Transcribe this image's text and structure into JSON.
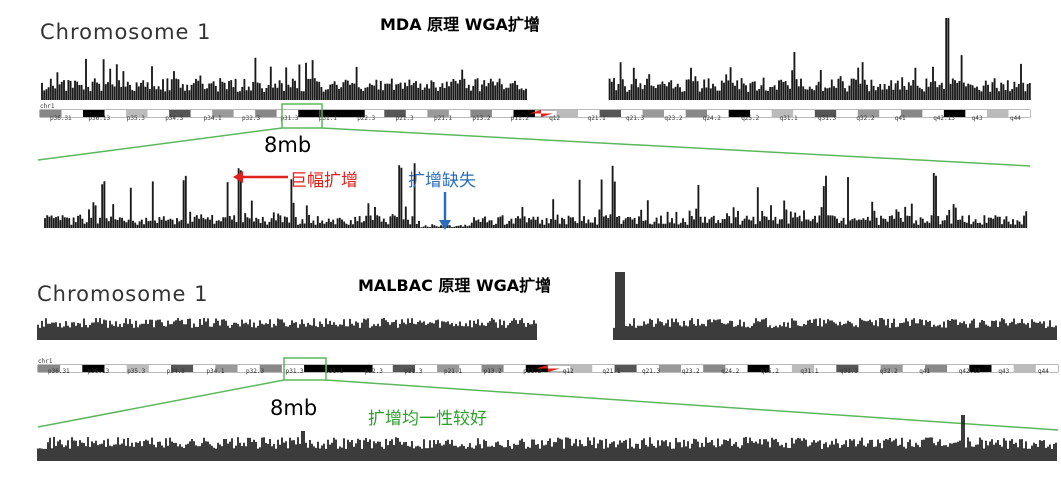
{
  "colors": {
    "track": "#1a1a1a",
    "zoom_box": "#5cb85c",
    "callout_red": "#e0201b",
    "callout_blue": "#2a6ebb",
    "callout_green": "#2ca02c",
    "centromere": "#e0201b"
  },
  "panels": [
    {
      "title": "MDA 原理 WGA扩增",
      "chrom_label": "Chromosome 1",
      "chr_name": "chr1",
      "zoom_label": "8mb",
      "annotations": [
        "巨幅扩增",
        "扩增缺失"
      ],
      "top_track_style": "spiky",
      "zoom_track_style": "spiky"
    },
    {
      "title": "MALBAC 原理 WGA扩增",
      "chrom_label": "Chromosome 1",
      "chr_name": "chr1",
      "zoom_label": "8mb",
      "annotations": [
        "扩增均一性较好"
      ],
      "top_track_style": "uniform",
      "zoom_track_style": "uniform"
    }
  ],
  "bands": [
    "p36.31",
    "p36.13",
    "p35.3",
    "p34.3",
    "p34.1",
    "p32.3",
    "p31.3",
    "p31.1",
    "p22.3",
    "p21.3",
    "p21.1",
    "p13.2",
    "p11.2",
    "q12",
    "q21.1",
    "q21.3",
    "q23.2",
    "q24.2",
    "q25.2",
    "q31.1",
    "q31.3",
    "q32.2",
    "q41",
    "q42.13",
    "q43",
    "q44"
  ]
}
